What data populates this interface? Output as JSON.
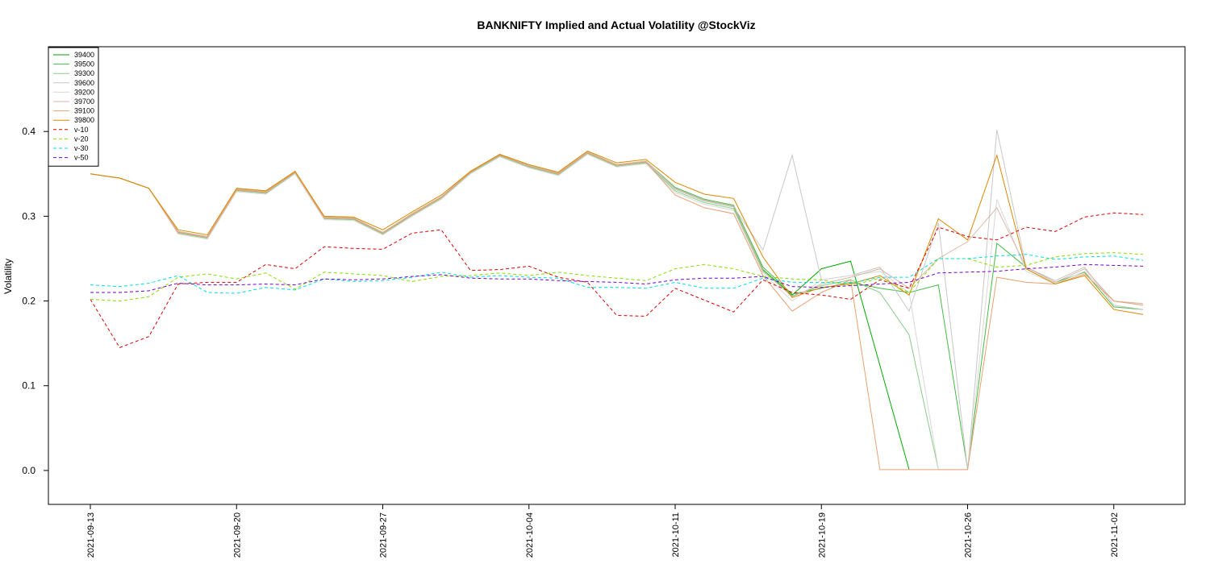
{
  "chart_data": {
    "type": "line",
    "title": "BANKNIFTY Implied and Actual Volatility @StockViz",
    "xlabel": "",
    "ylabel": "Volatility",
    "ylim": [
      -0.04,
      0.5
    ],
    "yticks": [
      "0.0",
      "0.1",
      "0.2",
      "0.3",
      "0.4"
    ],
    "ytick_values": [
      0.0,
      0.1,
      0.2,
      0.3,
      0.4
    ],
    "xticks": [
      "2021-09-13",
      "2021-09-20",
      "2021-09-27",
      "2021-10-04",
      "2021-10-11",
      "2021-10-19",
      "2021-10-26",
      "2021-11-02"
    ],
    "x": [
      "2021-09-13",
      "2021-09-14",
      "2021-09-15",
      "2021-09-16",
      "2021-09-17",
      "2021-09-20",
      "2021-09-21",
      "2021-09-22",
      "2021-09-23",
      "2021-09-24",
      "2021-09-27",
      "2021-09-28",
      "2021-09-29",
      "2021-09-30",
      "2021-10-01",
      "2021-10-04",
      "2021-10-05",
      "2021-10-06",
      "2021-10-07",
      "2021-10-08",
      "2021-10-11",
      "2021-10-12",
      "2021-10-13",
      "2021-10-14",
      "2021-10-18",
      "2021-10-19",
      "2021-10-20",
      "2021-10-21",
      "2021-10-22",
      "2021-10-25",
      "2021-10-26",
      "2021-10-27",
      "2021-10-28",
      "2021-10-29",
      "2021-11-01",
      "2021-11-02",
      "2021-11-03"
    ],
    "grid": false,
    "legend_position": "top-left",
    "series": [
      {
        "name": "39400",
        "color": "#00aa00",
        "dash": "",
        "values": [
          0.35,
          0.345,
          0.333,
          0.281,
          0.275,
          0.331,
          0.328,
          0.352,
          0.298,
          0.297,
          0.28,
          0.302,
          0.322,
          0.352,
          0.372,
          0.359,
          0.35,
          0.375,
          0.36,
          0.364,
          0.332,
          0.318,
          0.311,
          0.237,
          0.207,
          0.238,
          0.247,
          0.124,
          0.001,
          null,
          null,
          null,
          null,
          null,
          null,
          null,
          null
        ]
      },
      {
        "name": "39500",
        "color": "#44bb44",
        "dash": "",
        "values": [
          0.35,
          0.345,
          0.333,
          0.282,
          0.276,
          0.332,
          0.329,
          0.353,
          0.299,
          0.298,
          0.281,
          0.303,
          0.323,
          0.353,
          0.373,
          0.36,
          0.351,
          0.376,
          0.361,
          0.365,
          0.334,
          0.32,
          0.313,
          0.24,
          0.208,
          0.215,
          0.222,
          0.215,
          0.21,
          0.219,
          0.002,
          0.268,
          0.24,
          0.222,
          0.234,
          0.193,
          0.19
        ]
      },
      {
        "name": "39300",
        "color": "#88cc88",
        "dash": "",
        "values": [
          0.35,
          0.345,
          0.333,
          0.28,
          0.274,
          0.33,
          0.327,
          0.351,
          0.297,
          0.296,
          0.279,
          0.301,
          0.321,
          0.351,
          0.371,
          0.358,
          0.349,
          0.374,
          0.359,
          0.363,
          0.33,
          0.316,
          0.309,
          0.235,
          0.206,
          0.218,
          0.225,
          0.21,
          0.16,
          0.001,
          null,
          null,
          null,
          null,
          null,
          null,
          null
        ]
      },
      {
        "name": "39600",
        "color": "#c8c8c8",
        "dash": "",
        "values": [
          0.35,
          0.345,
          0.333,
          0.281,
          0.275,
          0.331,
          0.328,
          0.352,
          0.298,
          0.297,
          0.28,
          0.302,
          0.322,
          0.352,
          0.372,
          0.359,
          0.35,
          0.375,
          0.36,
          0.364,
          0.332,
          0.318,
          0.311,
          0.26,
          0.372,
          0.225,
          0.23,
          0.24,
          0.188,
          0.292,
          0.001,
          0.402,
          0.24,
          0.224,
          0.24,
          0.195,
          0.19
        ]
      },
      {
        "name": "39200",
        "color": "#d8d8d8",
        "dash": "",
        "values": [
          0.35,
          0.345,
          0.333,
          0.279,
          0.273,
          0.329,
          0.326,
          0.35,
          0.296,
          0.295,
          0.278,
          0.3,
          0.32,
          0.35,
          0.37,
          0.357,
          0.348,
          0.373,
          0.358,
          0.362,
          0.328,
          0.314,
          0.307,
          0.233,
          0.2,
          0.225,
          0.23,
          0.235,
          0.21,
          0.001,
          0.001,
          0.32,
          0.235,
          0.22,
          0.235,
          0.2,
          0.195
        ]
      },
      {
        "name": "39700",
        "color": "#d8b8a8",
        "dash": "",
        "values": [
          0.35,
          0.345,
          0.333,
          0.282,
          0.276,
          0.332,
          0.329,
          0.353,
          0.299,
          0.298,
          0.281,
          0.303,
          0.323,
          0.353,
          0.373,
          0.36,
          0.351,
          0.376,
          0.361,
          0.365,
          0.333,
          0.319,
          0.312,
          0.236,
          0.205,
          0.22,
          0.228,
          0.238,
          0.215,
          0.25,
          0.27,
          0.31,
          0.24,
          0.222,
          0.238,
          0.2,
          0.197
        ]
      },
      {
        "name": "39100",
        "color": "#e8a070",
        "dash": "",
        "values": [
          0.35,
          0.345,
          0.333,
          0.281,
          0.275,
          0.331,
          0.328,
          0.352,
          0.298,
          0.297,
          0.28,
          0.302,
          0.322,
          0.352,
          0.372,
          0.359,
          0.35,
          0.375,
          0.36,
          0.364,
          0.325,
          0.31,
          0.303,
          0.23,
          0.188,
          0.21,
          0.225,
          0.001,
          0.001,
          0.001,
          0.001,
          0.228,
          0.222,
          0.22,
          0.232,
          0.2,
          0.195
        ]
      },
      {
        "name": "39800",
        "color": "#dd8800",
        "dash": "",
        "values": [
          0.35,
          0.345,
          0.333,
          0.284,
          0.278,
          0.333,
          0.33,
          0.353,
          0.3,
          0.299,
          0.284,
          0.305,
          0.325,
          0.353,
          0.373,
          0.361,
          0.352,
          0.377,
          0.363,
          0.367,
          0.34,
          0.326,
          0.321,
          0.252,
          0.204,
          0.216,
          0.22,
          0.23,
          0.207,
          0.297,
          0.272,
          0.372,
          0.238,
          0.22,
          0.23,
          0.19,
          0.184
        ]
      },
      {
        "name": "v-10",
        "color": "#dd0000",
        "dash": "4,3",
        "values": [
          0.202,
          0.145,
          0.158,
          0.22,
          0.222,
          0.222,
          0.243,
          0.238,
          0.264,
          0.262,
          0.261,
          0.28,
          0.284,
          0.236,
          0.237,
          0.241,
          0.228,
          0.222,
          0.183,
          0.182,
          0.215,
          0.201,
          0.187,
          0.225,
          0.21,
          0.207,
          0.202,
          0.225,
          0.215,
          0.287,
          0.276,
          0.272,
          0.287,
          0.282,
          0.299,
          0.304,
          0.302
        ]
      },
      {
        "name": "v-20",
        "color": "#88dd00",
        "dash": "4,3",
        "values": [
          0.202,
          0.2,
          0.205,
          0.228,
          0.232,
          0.226,
          0.233,
          0.214,
          0.234,
          0.232,
          0.23,
          0.223,
          0.229,
          0.23,
          0.233,
          0.23,
          0.234,
          0.23,
          0.227,
          0.224,
          0.238,
          0.243,
          0.238,
          0.229,
          0.226,
          0.225,
          0.218,
          0.227,
          0.21,
          0.25,
          0.25,
          0.24,
          0.242,
          0.252,
          0.256,
          0.257,
          0.255
        ]
      },
      {
        "name": "v-30",
        "color": "#00dddd",
        "dash": "4,3",
        "values": [
          0.219,
          0.217,
          0.221,
          0.23,
          0.21,
          0.209,
          0.216,
          0.213,
          0.226,
          0.223,
          0.224,
          0.228,
          0.234,
          0.228,
          0.23,
          0.228,
          0.227,
          0.216,
          0.216,
          0.215,
          0.222,
          0.215,
          0.215,
          0.227,
          0.222,
          0.222,
          0.221,
          0.228,
          0.228,
          0.25,
          0.25,
          0.253,
          0.255,
          0.249,
          0.252,
          0.253,
          0.248
        ]
      },
      {
        "name": "v-50",
        "color": "#7700cc",
        "dash": "4,3",
        "values": [
          0.21,
          0.21,
          0.212,
          0.221,
          0.219,
          0.219,
          0.22,
          0.219,
          0.226,
          0.225,
          0.226,
          0.229,
          0.231,
          0.227,
          0.226,
          0.226,
          0.224,
          0.223,
          0.222,
          0.22,
          0.225,
          0.227,
          0.227,
          0.229,
          0.217,
          0.216,
          0.218,
          0.22,
          0.222,
          0.233,
          0.234,
          0.235,
          0.238,
          0.24,
          0.243,
          0.242,
          0.241
        ]
      }
    ]
  }
}
